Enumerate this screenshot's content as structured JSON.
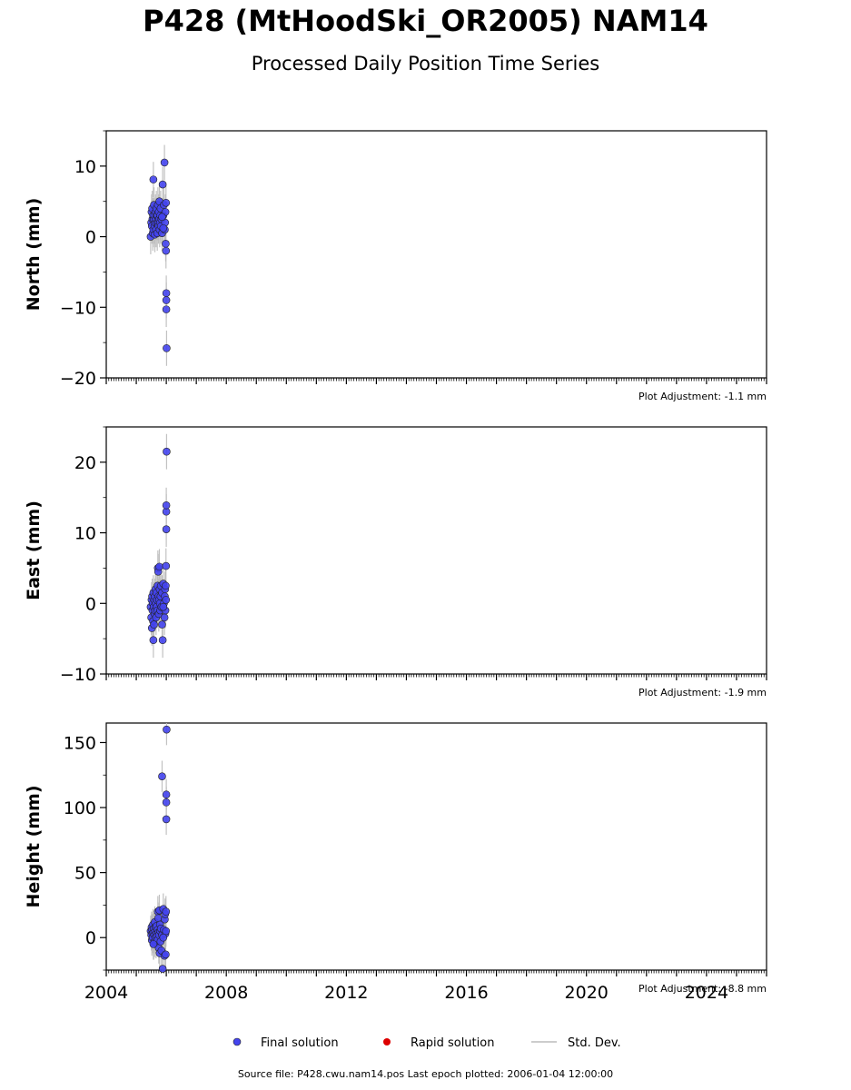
{
  "title": "P428 (MtHoodSki_OR2005) NAM14",
  "subtitle": "Processed Daily Position Time Series",
  "source_note": "Source file: P428.cwu.nam14.pos  Last epoch plotted: 2006-01-04 12:00:00",
  "legend": {
    "final": "Final solution",
    "rapid": "Rapid solution",
    "std": "Std. Dev."
  },
  "colors": {
    "final": "#4444ee",
    "rapid": "#dd0000",
    "std": "#bbbbbb"
  },
  "chart_data": [
    {
      "type": "scatter",
      "ylabel": "North (mm)",
      "adjustment": "Plot Adjustment: -1.1 mm",
      "xlim": [
        2004,
        2026
      ],
      "ylim": [
        -20,
        15
      ],
      "yticks": [
        -20,
        -10,
        0,
        10
      ],
      "yticklabels": [
        "−20",
        "−10",
        "0",
        "10"
      ],
      "series": [
        {
          "x": [
            2005.48,
            2005.5,
            2005.51,
            2005.52,
            2005.53,
            2005.54,
            2005.55,
            2005.56,
            2005.57,
            2005.58,
            2005.59,
            2005.6,
            2005.61,
            2005.62,
            2005.63,
            2005.64,
            2005.65,
            2005.66,
            2005.67,
            2005.68,
            2005.69,
            2005.7,
            2005.71,
            2005.72,
            2005.73,
            2005.74,
            2005.75,
            2005.76,
            2005.77,
            2005.78,
            2005.79,
            2005.8,
            2005.81,
            2005.82,
            2005.84,
            2005.86,
            2005.88,
            2005.9,
            2005.92,
            2005.94,
            2005.95,
            2005.96,
            2005.97,
            2005.98,
            2005.99,
            2005.99,
            2006.0,
            2006.0,
            2006.0,
            2006.01,
            2005.57,
            2005.86,
            2005.9
          ],
          "y": [
            0.0,
            2.0,
            3.5,
            1.5,
            4.0,
            2.5,
            0.5,
            3.0,
            1.0,
            2.5,
            4.5,
            3.0,
            1.5,
            0.3,
            2.0,
            3.5,
            2.5,
            1.0,
            4.0,
            3.0,
            2.0,
            0.5,
            3.0,
            4.5,
            2.0,
            1.5,
            3.5,
            2.5,
            5.0,
            1.0,
            2.0,
            3.0,
            4.0,
            1.5,
            2.5,
            0.5,
            7.4,
            3.0,
            4.5,
            10.5,
            1.0,
            2.0,
            3.5,
            -1.0,
            -2.0,
            4.8,
            -8.0,
            -9.0,
            -10.3,
            -15.8,
            8.1,
            2.8,
            1.2
          ],
          "err": [
            2.5,
            2.5,
            2.5,
            2.5,
            2.5,
            2.5,
            2.5,
            2.5,
            2.5,
            2.5,
            2.5,
            2.5,
            2.5,
            2.5,
            2.5,
            2.5,
            2.5,
            2.5,
            2.5,
            2.5,
            2.5,
            2.5,
            2.5,
            2.5,
            2.5,
            2.5,
            2.5,
            2.5,
            2.5,
            2.5,
            2.5,
            2.5,
            2.5,
            2.5,
            2.5,
            2.5,
            2.5,
            2.5,
            2.5,
            2.5,
            2.5,
            2.5,
            2.5,
            2.5,
            2.5,
            2.5,
            2.5,
            2.5,
            2.5,
            2.5,
            2.5,
            2.5,
            2.5
          ]
        }
      ]
    },
    {
      "type": "scatter",
      "ylabel": "East (mm)",
      "adjustment": "Plot Adjustment: -1.9 mm",
      "xlim": [
        2004,
        2026
      ],
      "ylim": [
        -10,
        25
      ],
      "yticks": [
        -10,
        0,
        10,
        20
      ],
      "yticklabels": [
        "−10",
        "0",
        "10",
        "20"
      ],
      "series": [
        {
          "x": [
            2005.48,
            2005.5,
            2005.51,
            2005.52,
            2005.53,
            2005.54,
            2005.55,
            2005.56,
            2005.57,
            2005.58,
            2005.59,
            2005.6,
            2005.61,
            2005.62,
            2005.63,
            2005.64,
            2005.65,
            2005.66,
            2005.67,
            2005.68,
            2005.69,
            2005.7,
            2005.71,
            2005.72,
            2005.73,
            2005.74,
            2005.75,
            2005.76,
            2005.77,
            2005.78,
            2005.79,
            2005.8,
            2005.81,
            2005.82,
            2005.84,
            2005.86,
            2005.88,
            2005.9,
            2005.92,
            2005.94,
            2005.95,
            2005.96,
            2005.97,
            2005.98,
            2005.99,
            2005.99,
            2006.0,
            2006.0,
            2006.0,
            2006.01,
            2005.57,
            2005.86,
            2005.9
          ],
          "y": [
            -0.5,
            -2.0,
            0.5,
            -3.5,
            1.0,
            -1.0,
            0.0,
            -2.5,
            1.5,
            -0.5,
            -3.0,
            0.5,
            -1.5,
            1.0,
            -1.0,
            2.0,
            0.0,
            -2.0,
            1.5,
            -0.5,
            0.5,
            -1.0,
            2.5,
            5.0,
            4.5,
            1.0,
            -1.5,
            0.5,
            5.2,
            2.0,
            0.0,
            -1.0,
            1.0,
            2.5,
            -0.5,
            1.5,
            -5.2,
            2.8,
            0.0,
            -2.0,
            1.0,
            2.0,
            -1.0,
            2.5,
            0.5,
            5.3,
            10.5,
            13.0,
            13.9,
            21.5,
            -5.2,
            -3.0,
            -0.5
          ],
          "err": [
            2.5,
            2.5,
            2.5,
            2.5,
            2.5,
            2.5,
            2.5,
            2.5,
            2.5,
            2.5,
            2.5,
            2.5,
            2.5,
            2.5,
            2.5,
            2.5,
            2.5,
            2.5,
            2.5,
            2.5,
            2.5,
            2.5,
            2.5,
            2.5,
            2.5,
            2.5,
            2.5,
            2.5,
            2.5,
            2.5,
            2.5,
            2.5,
            2.5,
            2.5,
            2.5,
            2.5,
            2.5,
            2.5,
            2.5,
            2.5,
            2.5,
            2.5,
            2.5,
            2.5,
            2.5,
            2.5,
            2.5,
            2.5,
            2.5,
            2.5,
            2.5,
            2.5,
            2.5
          ]
        }
      ]
    },
    {
      "type": "scatter",
      "ylabel": "Height (mm)",
      "adjustment": "Plot Adjustment: -8.8 mm",
      "xlim": [
        2004,
        2026
      ],
      "ylim": [
        -25,
        165
      ],
      "yticks": [
        0,
        50,
        100,
        150
      ],
      "yticklabels": [
        "0",
        "50",
        "100",
        "150"
      ],
      "xticks": [
        2004,
        2008,
        2012,
        2016,
        2020,
        2024
      ],
      "xticklabels": [
        "2004",
        "2008",
        "2012",
        "2016",
        "2020",
        "2024"
      ],
      "series": [
        {
          "x": [
            2005.48,
            2005.5,
            2005.51,
            2005.52,
            2005.53,
            2005.54,
            2005.55,
            2005.56,
            2005.57,
            2005.58,
            2005.59,
            2005.6,
            2005.61,
            2005.62,
            2005.63,
            2005.64,
            2005.65,
            2005.66,
            2005.67,
            2005.68,
            2005.69,
            2005.7,
            2005.71,
            2005.72,
            2005.73,
            2005.74,
            2005.75,
            2005.76,
            2005.77,
            2005.78,
            2005.79,
            2005.8,
            2005.81,
            2005.82,
            2005.84,
            2005.86,
            2005.88,
            2005.9,
            2005.92,
            2005.94,
            2005.95,
            2005.96,
            2005.97,
            2005.98,
            2005.99,
            2005.99,
            2006.0,
            2006.0,
            2006.0,
            2006.01,
            2005.57,
            2005.86,
            2005.9
          ],
          "y": [
            5,
            2,
            8,
            -2,
            6,
            3,
            0,
            10,
            4,
            -5,
            7,
            2,
            -3,
            12,
            5,
            0,
            8,
            -4,
            3,
            9,
            1,
            -2,
            6,
            20,
            15,
            4,
            -8,
            2,
            21,
            -12,
            10,
            5,
            -3,
            7,
            -10,
            2,
            -24,
            22,
            6,
            -14,
            14,
            18,
            3,
            -13,
            5,
            20,
            91,
            104,
            110,
            160,
            -5,
            124,
            0
          ],
          "err": [
            12,
            12,
            12,
            12,
            12,
            12,
            12,
            12,
            12,
            12,
            12,
            12,
            12,
            12,
            12,
            12,
            12,
            12,
            12,
            12,
            12,
            12,
            12,
            12,
            12,
            12,
            12,
            12,
            12,
            12,
            12,
            12,
            12,
            12,
            12,
            12,
            12,
            12,
            12,
            12,
            12,
            12,
            12,
            12,
            12,
            12,
            12,
            12,
            12,
            12,
            12,
            12,
            12
          ]
        }
      ]
    }
  ]
}
